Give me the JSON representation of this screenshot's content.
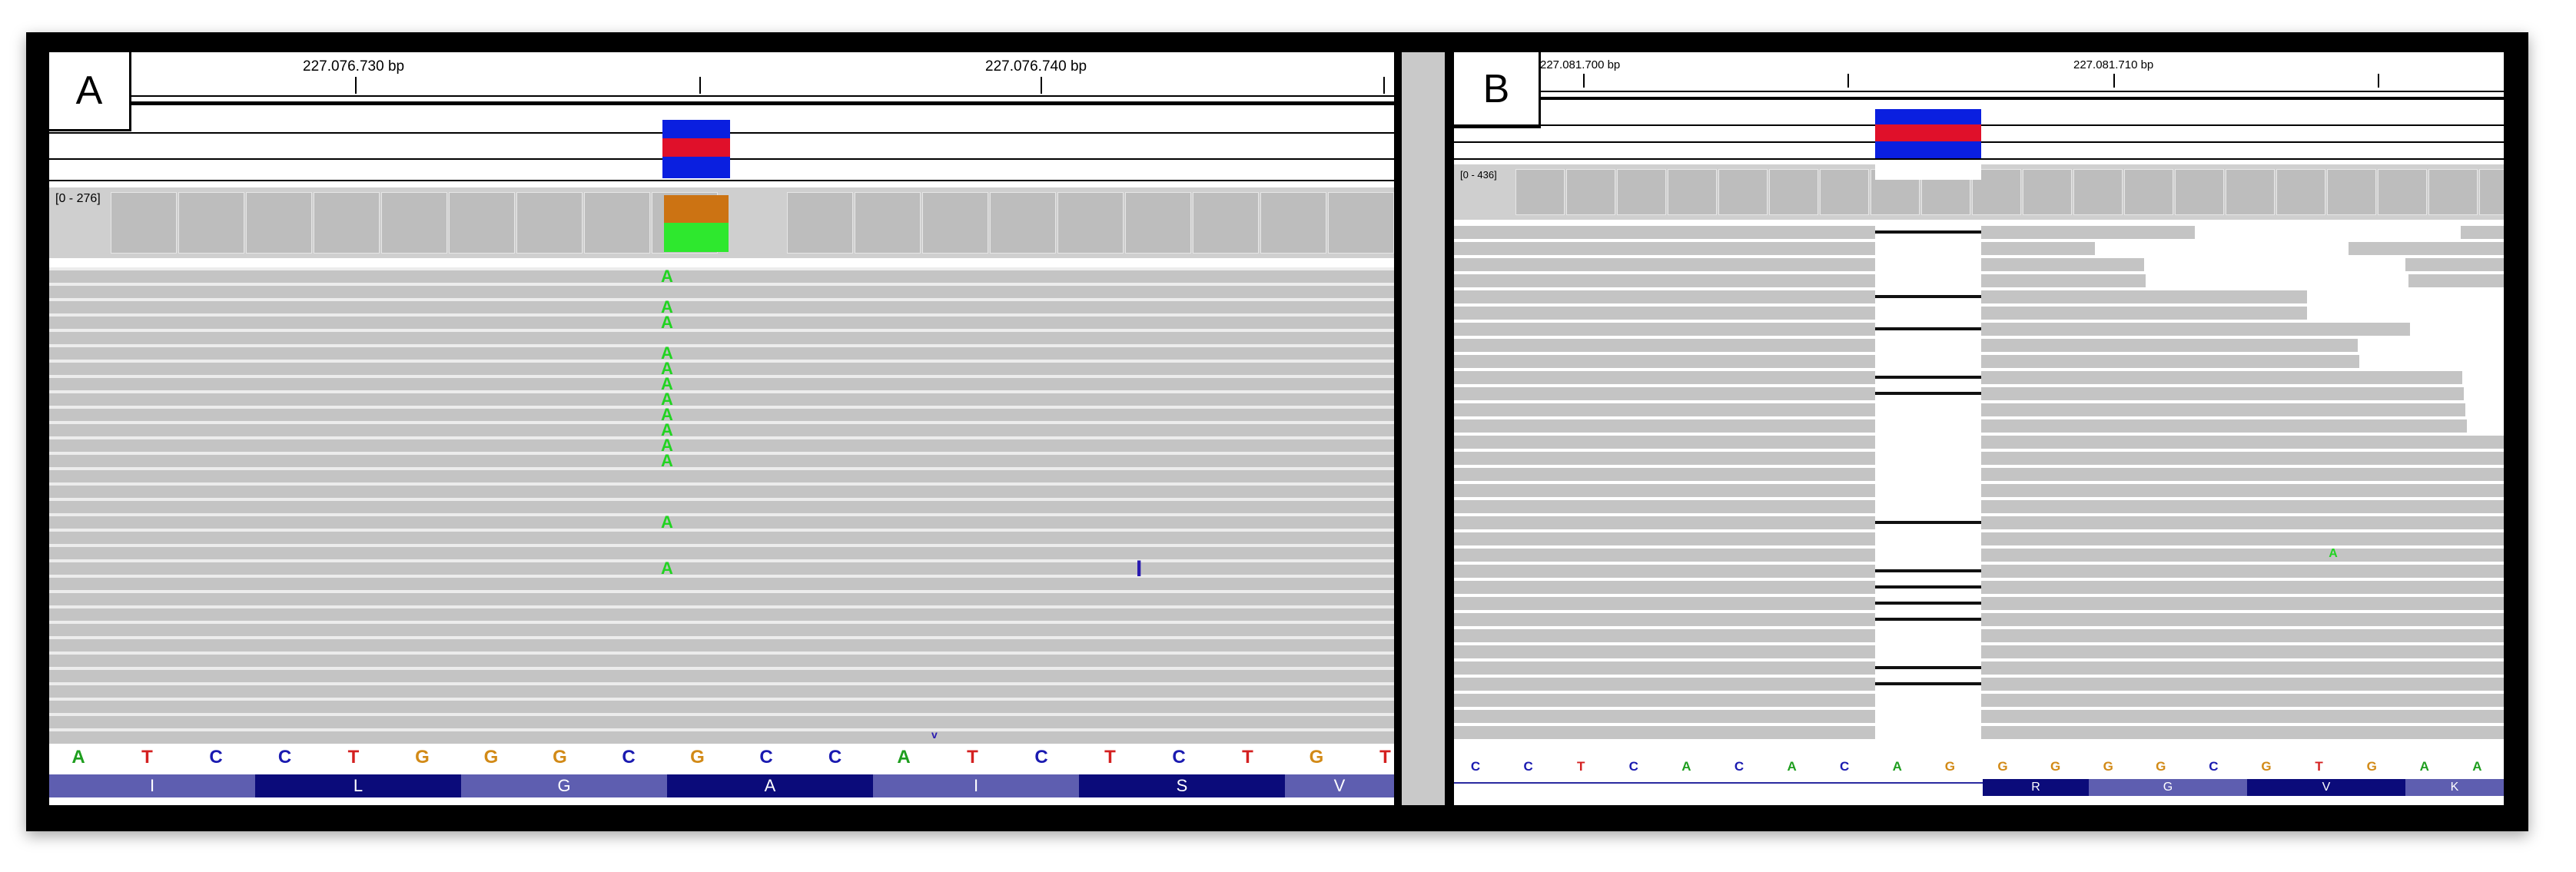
{
  "panel_a": {
    "label": "A",
    "coords": [
      "227.076.730 bp",
      "227.076.740 bp"
    ],
    "coverage_range": "[0 - 276]",
    "reference_bases": [
      "A",
      "T",
      "C",
      "C",
      "T",
      "G",
      "G",
      "G",
      "C",
      "G",
      "C",
      "C",
      "A",
      "T",
      "C",
      "T",
      "C",
      "T",
      "G",
      "T"
    ],
    "amino_acids": [
      "I",
      "L",
      "G",
      "A",
      "I",
      "S",
      "V"
    ],
    "mismatch_base": "A",
    "insertion_symbol": "I"
  },
  "panel_b": {
    "label": "B",
    "coords": [
      "227.081.700 bp",
      "227.081.710 bp"
    ],
    "coverage_range": "[0 - 436]",
    "reference_bases": [
      "C",
      "C",
      "T",
      "C",
      "A",
      "C",
      "A",
      "C",
      "A",
      "G",
      "G",
      "G",
      "G",
      "G",
      "C",
      "G",
      "T",
      "G",
      "A",
      "A"
    ],
    "amino_acids": [
      "R",
      "G",
      "V",
      "K"
    ],
    "mismatch_base": "A"
  },
  "colors": {
    "A": "#1e9e1e",
    "C": "#1a1ab0",
    "G": "#d28a17",
    "T": "#d42020",
    "aa_dark": "#0b0b7a",
    "aa_light": "#5e5eb0"
  }
}
